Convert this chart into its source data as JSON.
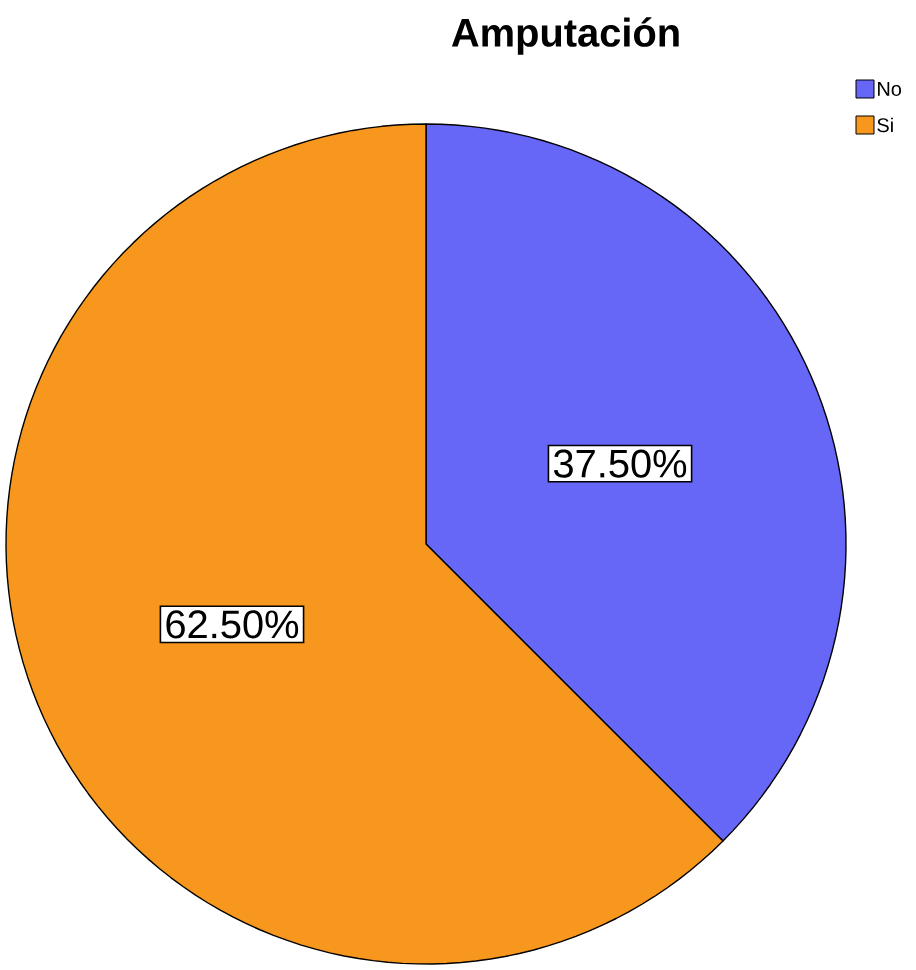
{
  "chart_data": {
    "type": "pie",
    "title": "Amputación",
    "categories": [
      "No",
      "Si"
    ],
    "values": [
      37.5,
      62.5
    ],
    "colors": [
      "#6666f7",
      "#f7971d"
    ],
    "value_labels": [
      "37.50%",
      "62.50%"
    ],
    "legend": "top right"
  }
}
